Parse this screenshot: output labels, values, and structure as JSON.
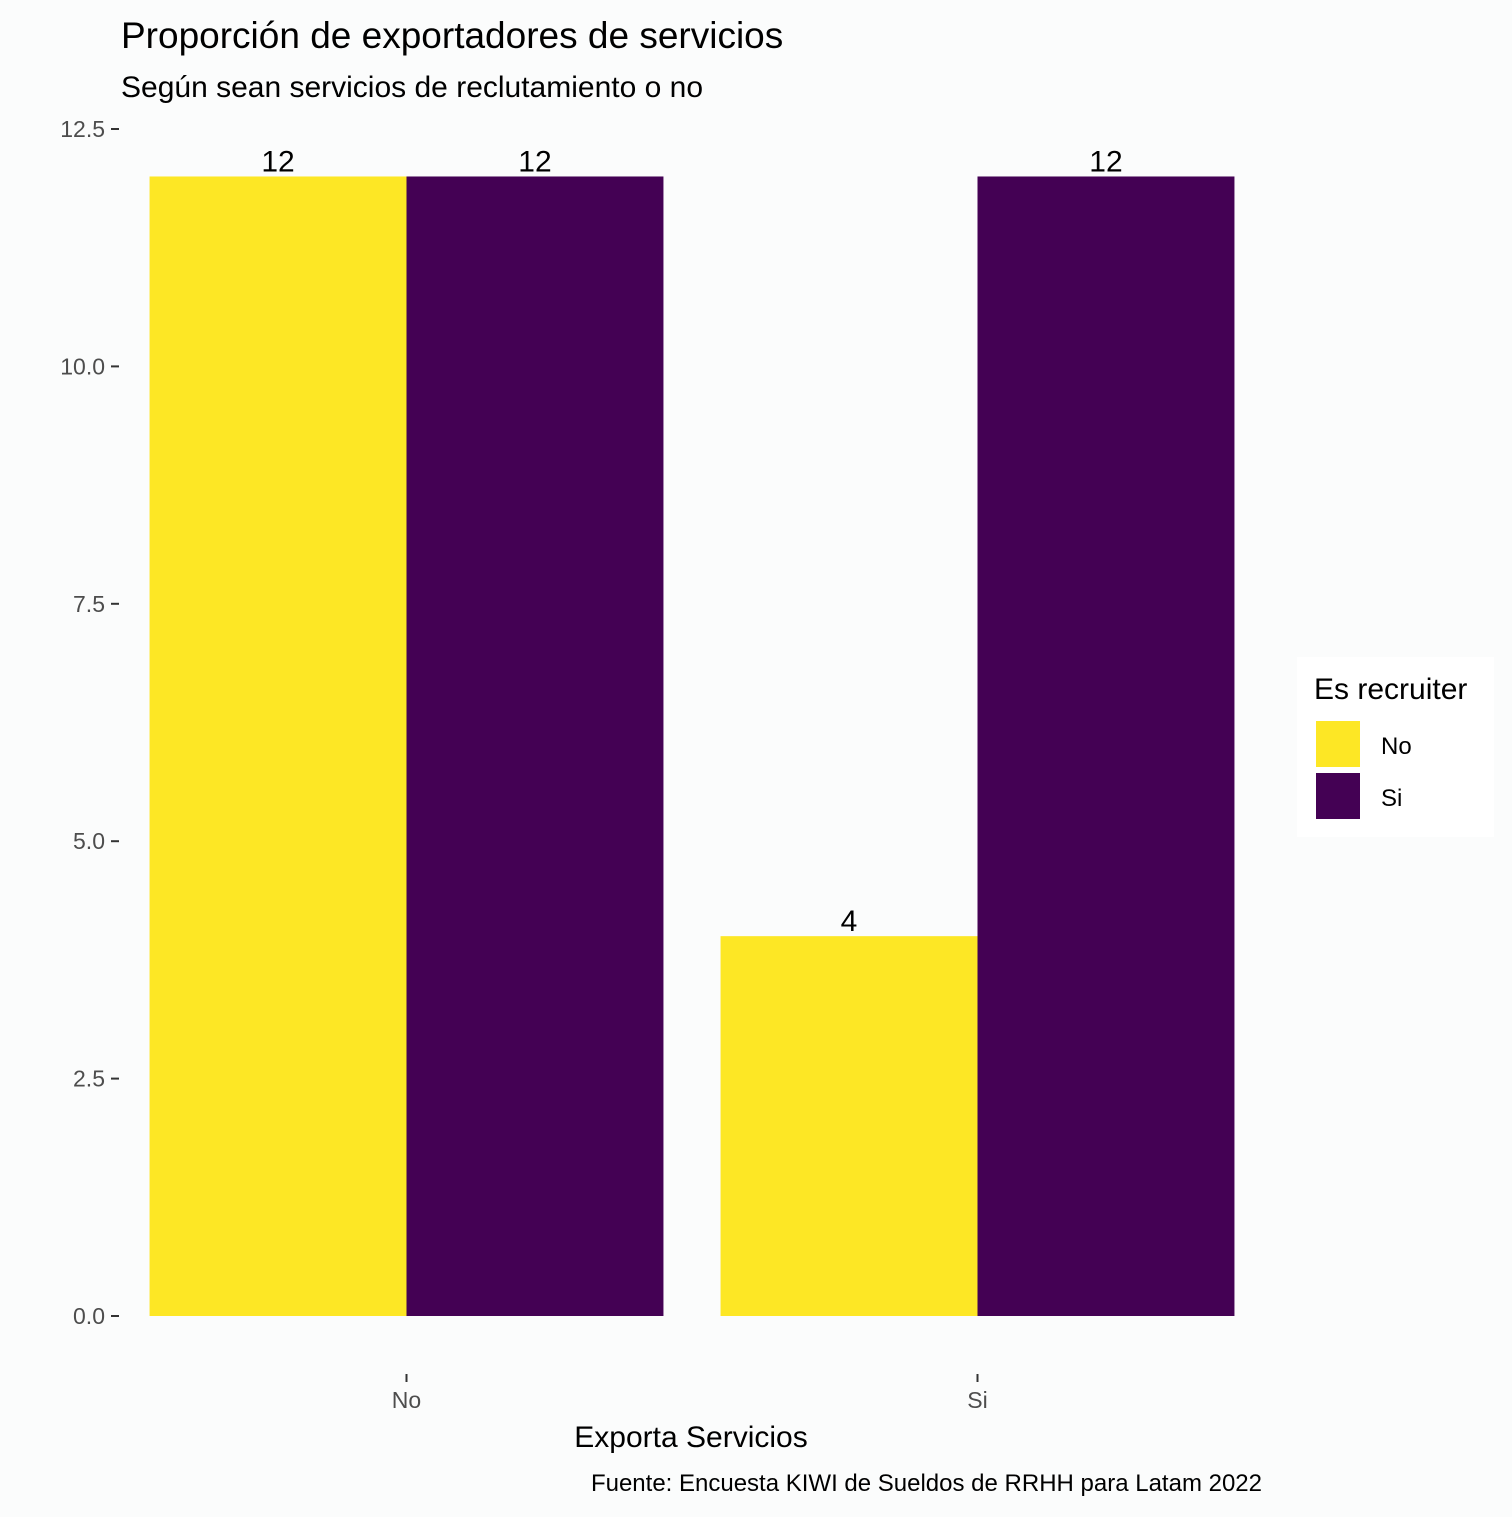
{
  "chart_data": {
    "type": "bar",
    "title": "Proporción de exportadores de servicios",
    "subtitle": "Según sean servicios de reclutamiento o no",
    "xlabel": "Exporta Servicios",
    "ylabel": "",
    "caption": "Fuente: Encuesta KIWI de Sueldos de RRHH para Latam 2022",
    "categories": [
      "No",
      "Si"
    ],
    "series": [
      {
        "name": "No",
        "color": "#FDE725",
        "values": [
          12,
          4
        ]
      },
      {
        "name": "Si",
        "color": "#440154",
        "values": [
          12,
          12
        ]
      }
    ],
    "ylim": [
      0,
      12.5
    ],
    "yticks": [
      0.0,
      2.5,
      5.0,
      7.5,
      10.0,
      12.5
    ],
    "ytick_labels": [
      "0.0",
      "2.5",
      "5.0",
      "7.5",
      "10.0",
      "12.5"
    ],
    "grid": false,
    "legend": {
      "title": "Es recruiter",
      "position": "right",
      "items": [
        "No",
        "Si"
      ]
    },
    "data_labels": true
  }
}
